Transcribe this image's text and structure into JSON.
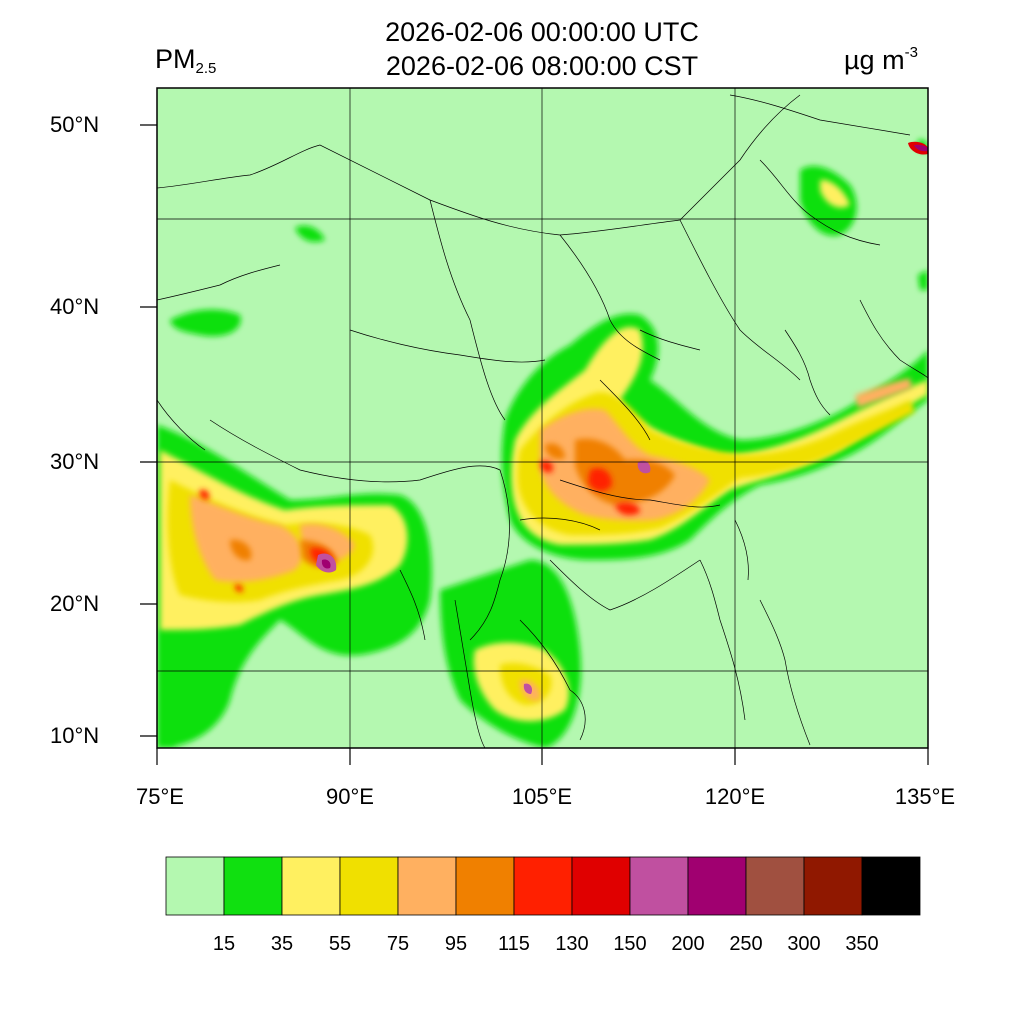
{
  "header": {
    "title_utc": "2026-02-06 00:00:00 UTC",
    "title_cst": "2026-02-06 08:00:00 CST",
    "variable_main": "PM",
    "variable_sub": "2.5",
    "unit_main": "µg m",
    "unit_sup": "-3"
  },
  "axes": {
    "lat_labels": [
      "50°N",
      "40°N",
      "30°N",
      "20°N",
      "10°N"
    ],
    "lon_labels": [
      "75°E",
      "90°E",
      "105°E",
      "120°E",
      "135°E"
    ]
  },
  "legend": {
    "colors": [
      "#b4f8b0",
      "#10e010",
      "#fff060",
      "#f0e000",
      "#ffb060",
      "#f08000",
      "#ff2000",
      "#e00000",
      "#c050a0",
      "#a00070",
      "#a05040",
      "#901800",
      "#000000"
    ],
    "thresholds": [
      "15",
      "35",
      "55",
      "75",
      "95",
      "115",
      "130",
      "150",
      "200",
      "250",
      "300",
      "350"
    ]
  },
  "map": {
    "background_color": "#b4f8b0",
    "extent": "75°E–135°E, 9°N–52°N",
    "pollution_hotspots": [
      "Indo-Gangetic Plain",
      "Sichuan Basin",
      "Central China",
      "Yangtze River Delta",
      "Korean peninsula coast",
      "Southern Indochina",
      "Northeast China"
    ]
  }
}
